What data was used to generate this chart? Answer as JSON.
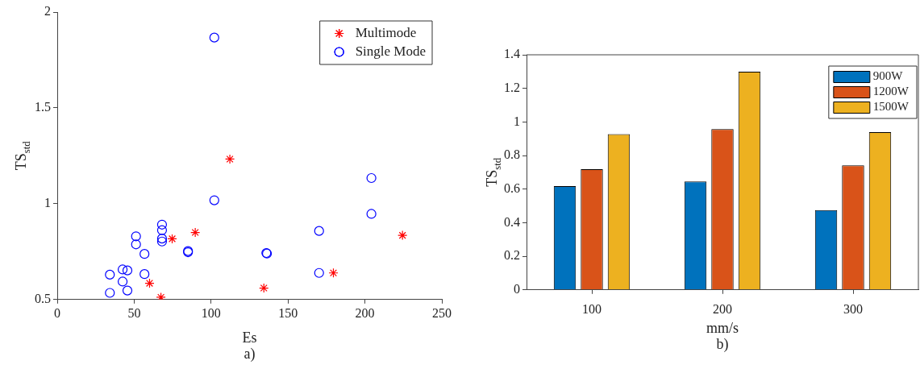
{
  "chart_data": [
    {
      "type": "scatter",
      "xlabel": "Es",
      "ylabel": "TS$_{std}$",
      "annotations": [
        "a)"
      ],
      "xlim": [
        0,
        250
      ],
      "xticks": [
        0,
        50,
        100,
        150,
        200,
        250
      ],
      "ylim": [
        0.5,
        2
      ],
      "yticks": [
        0.5,
        1,
        1.5,
        2
      ],
      "grid": false,
      "legend": "top right",
      "series": [
        {
          "name": "Multimode",
          "color": "#ff0000",
          "marker": "cross",
          "x": [
            112.2,
            89.7,
            74.7,
            60,
            67.4,
            134.3,
            179.5,
            224.4
          ],
          "values": [
            1.233,
            0.85,
            0.817,
            0.585,
            0.512,
            0.56,
            0.639,
            0.835
          ]
        },
        {
          "name": "Single Mode",
          "color": "#0000ff",
          "marker": "circle",
          "x": [
            102.1,
            102.1,
            204.2,
            204.2,
            170.2,
            170.2,
            136.3,
            135.9,
            85,
            85,
            68.1,
            68.1,
            68.1,
            68.1,
            51.2,
            51.2,
            56.7,
            56.7,
            42.5,
            45.6,
            42.5,
            45.6,
            34.2,
            34.2
          ],
          "values": [
            1.867,
            1.018,
            1.134,
            0.947,
            0.858,
            0.639,
            0.74,
            0.743,
            0.753,
            0.747,
            0.891,
            0.862,
            0.818,
            0.803,
            0.83,
            0.788,
            0.738,
            0.633,
            0.657,
            0.652,
            0.594,
            0.547,
            0.63,
            0.535
          ]
        }
      ]
    },
    {
      "type": "bar",
      "xlabel": "mm/s",
      "ylabel": "TS$_{std}$",
      "annotations": [
        "b)"
      ],
      "categories": [
        "100",
        "200",
        "300"
      ],
      "ylim": [
        0,
        1.4
      ],
      "yticks": [
        0,
        0.2,
        0.4,
        0.6,
        0.8,
        1,
        1.2,
        1.4
      ],
      "grid": false,
      "legend": "top right",
      "series": [
        {
          "name": "900W",
          "color": "#0072bd",
          "values": [
            0.618,
            0.645,
            0.475
          ]
        },
        {
          "name": "1200W",
          "color": "#d95319",
          "values": [
            0.719,
            0.958,
            0.742
          ]
        },
        {
          "name": "1500W",
          "color": "#edb120",
          "values": [
            0.928,
            1.299,
            0.94
          ]
        }
      ]
    }
  ]
}
